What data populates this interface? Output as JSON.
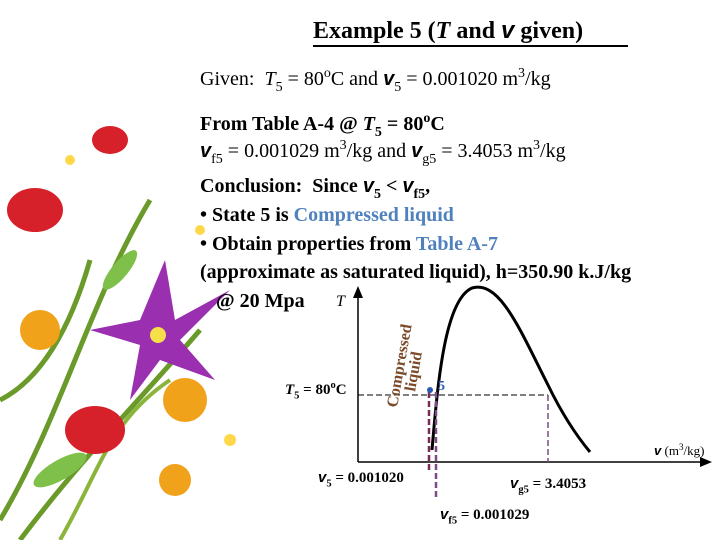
{
  "title": [
    "Example 5 (",
    "T",
    " and ",
    "v",
    " given)"
  ],
  "given": [
    "Given:  ",
    "T",
    "5",
    " = 80",
    "o",
    "C and ",
    "v",
    "5",
    " = 0.001020 m",
    "3",
    "/kg"
  ],
  "from_table": [
    "From Table A-4 @ ",
    "T",
    "5",
    " = 80",
    "o",
    "C"
  ],
  "vf_vg": [
    "v",
    "f5",
    " = 0.001029 m",
    "3",
    "/kg and ",
    "v",
    "g5",
    " = 3.4053 m",
    "3",
    "/kg"
  ],
  "conclusion": [
    "Conclusion:  Since ",
    "v",
    "5",
    " < ",
    "v",
    "f5",
    ","
  ],
  "bullets": [
    [
      "• State 5 is ",
      "Compressed liquid"
    ],
    [
      "• Obtain properties from ",
      "Table A-7"
    ]
  ],
  "approx": "(approximate as saturated liquid), h=350.90 k.J/kg",
  "at_pressure": "@ 20 Mpa",
  "diagram": {
    "t_axis": "T",
    "v_axis": [
      "v",
      " (m",
      "3",
      "/kg)"
    ],
    "t5_label": [
      "T",
      "5",
      " = 80",
      "o",
      "C"
    ],
    "region": [
      "Compressed",
      "liquid"
    ],
    "state": "5",
    "v5_label": [
      "v",
      "5",
      " = 0.001020"
    ],
    "vg5_label": [
      "v",
      "g5",
      " = 3.4053"
    ],
    "vf5_label": [
      "v",
      "f5",
      " = 0.001029"
    ]
  }
}
